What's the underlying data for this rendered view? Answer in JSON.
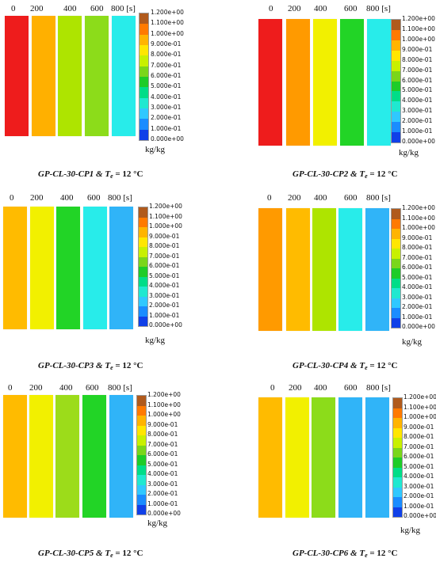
{
  "time_labels": [
    "0",
    "200",
    "400",
    "600",
    "800 [s]"
  ],
  "colorbar_ticks": [
    "1.200e+00",
    "1.100e+00",
    "1.000e+00",
    "9.000e-01",
    "8.000e-01",
    "7.000e-01",
    "6.000e-01",
    "5.000e-01",
    "4.000e-01",
    "3.000e-01",
    "2.000e-01",
    "1.000e-01",
    "0.000e+00"
  ],
  "colorbar_colors": [
    "#b05a1c",
    "#ff7a00",
    "#ffb400",
    "#ffe600",
    "#c8f000",
    "#7ad61a",
    "#1ecc28",
    "#00dd88",
    "#20e8d0",
    "#30c8ff",
    "#1a8cff",
    "#1040e8"
  ],
  "unit": "kg/kg",
  "caption_temp_symbol": "T",
  "caption_temp_sub": "e",
  "caption_temp_value": " = 12 °C",
  "panels": [
    {
      "name": "GP-CL-30-CP1 & ",
      "strips": [
        {
          "value": 1.25,
          "color": "#ee1c1c"
        },
        {
          "value": 1.0,
          "color": "#ffb000"
        },
        {
          "value": 0.85,
          "color": "#aee400"
        },
        {
          "value": 0.75,
          "color": "#8cdc1a"
        },
        {
          "value": 0.45,
          "color": "#28ecea"
        }
      ]
    },
    {
      "name": "GP-CL-30-CP2 & ",
      "strips": [
        {
          "value": 1.25,
          "color": "#ee1c1c"
        },
        {
          "value": 1.1,
          "color": "#ff9a00"
        },
        {
          "value": 0.95,
          "color": "#f2f000"
        },
        {
          "value": 0.7,
          "color": "#22d426"
        },
        {
          "value": 0.45,
          "color": "#28ecea"
        }
      ]
    },
    {
      "name": "GP-CL-30-CP3 & ",
      "strips": [
        {
          "value": 1.0,
          "color": "#ffbb00"
        },
        {
          "value": 0.95,
          "color": "#f2f000"
        },
        {
          "value": 0.65,
          "color": "#22d426"
        },
        {
          "value": 0.4,
          "color": "#28ecea"
        },
        {
          "value": 0.3,
          "color": "#30b4f8"
        }
      ]
    },
    {
      "name": "GP-CL-30-CP4 & ",
      "strips": [
        {
          "value": 1.05,
          "color": "#ff9a00"
        },
        {
          "value": 1.0,
          "color": "#ffbb00"
        },
        {
          "value": 0.85,
          "color": "#aee400"
        },
        {
          "value": 0.4,
          "color": "#28ecea"
        },
        {
          "value": 0.3,
          "color": "#30b4f8"
        }
      ]
    },
    {
      "name": "GP-CL-30-CP5 & ",
      "strips": [
        {
          "value": 1.0,
          "color": "#ffbb00"
        },
        {
          "value": 0.95,
          "color": "#f2f000"
        },
        {
          "value": 0.8,
          "color": "#9cdc1a"
        },
        {
          "value": 0.7,
          "color": "#22d426"
        },
        {
          "value": 0.3,
          "color": "#30b4f8"
        }
      ]
    },
    {
      "name": "GP-CL-30-CP6 & ",
      "strips": [
        {
          "value": 1.0,
          "color": "#ffbb00"
        },
        {
          "value": 0.95,
          "color": "#f2f000"
        },
        {
          "value": 0.85,
          "color": "#8cdc1a"
        },
        {
          "value": 0.35,
          "color": "#30b4f8"
        },
        {
          "value": 0.3,
          "color": "#30b4f8"
        }
      ]
    }
  ]
}
